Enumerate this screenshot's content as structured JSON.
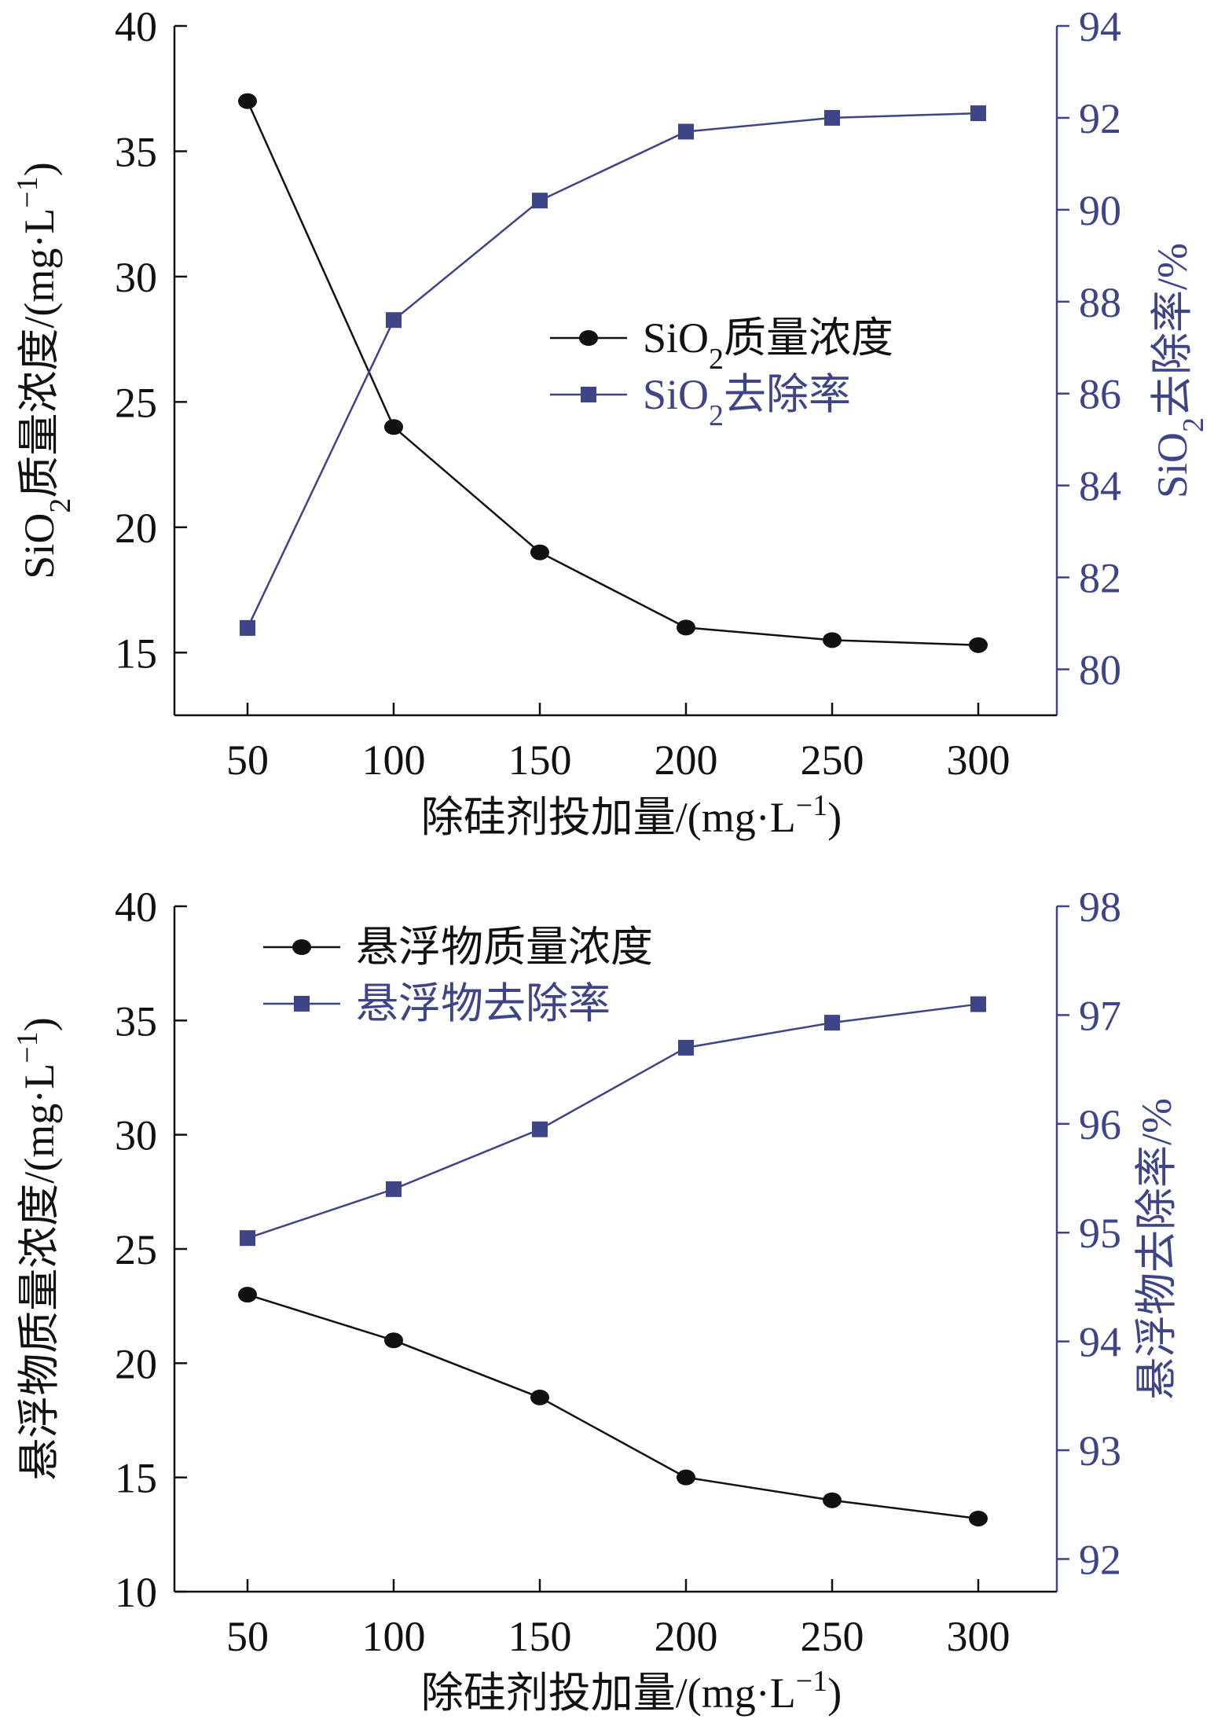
{
  "colors": {
    "left_series": "#111111",
    "right_series": "#3d4487",
    "axis_left": "#111111",
    "axis_right": "#3d4487"
  },
  "chart_data": [
    {
      "type": "line",
      "x": [
        50,
        100,
        150,
        200,
        250,
        300
      ],
      "xlabel": {
        "main": "除硅剂投加量/(mg·L",
        "sup": "−1",
        "tail": ")"
      },
      "ylabel_left": {
        "pre": "SiO",
        "sub": "2",
        "main": "质量浓度/(mg·L",
        "sup": "−1",
        "tail": ")"
      },
      "ylabel_right": {
        "pre": "SiO",
        "sub": "2",
        "main": "去除率/%"
      },
      "ylim_left": [
        12.5,
        40
      ],
      "yticks_left": [
        15,
        20,
        25,
        30,
        35,
        40
      ],
      "ylim_right": [
        79,
        94
      ],
      "yticks_right": [
        80,
        82,
        84,
        86,
        88,
        90,
        92,
        94
      ],
      "series": [
        {
          "name": {
            "pre": "SiO",
            "sub": "2",
            "main": "质量浓度"
          },
          "axis": "left",
          "marker": "circle",
          "values": [
            37,
            24,
            19,
            16,
            15.5,
            15.3
          ]
        },
        {
          "name": {
            "pre": "SiO",
            "sub": "2",
            "main": "去除率"
          },
          "axis": "right",
          "marker": "square",
          "values": [
            80.9,
            87.6,
            90.2,
            91.7,
            92.0,
            92.1
          ]
        }
      ],
      "legend_position": "center-right"
    },
    {
      "type": "line",
      "x": [
        50,
        100,
        150,
        200,
        250,
        300
      ],
      "xlabel": {
        "main": "除硅剂投加量/(mg·L",
        "sup": "−1",
        "tail": ")"
      },
      "ylabel_left": {
        "pre": "",
        "sub": "",
        "main": "悬浮物质量浓度/(mg·L",
        "sup": "−1",
        "tail": ")"
      },
      "ylabel_right": {
        "pre": "",
        "sub": "",
        "main": "悬浮物去除率/%"
      },
      "ylim_left": [
        10,
        40
      ],
      "yticks_left": [
        10,
        15,
        20,
        25,
        30,
        35,
        40
      ],
      "ylim_right": [
        91.7,
        98
      ],
      "yticks_right": [
        92,
        93,
        94,
        95,
        96,
        97,
        98
      ],
      "series": [
        {
          "name": {
            "pre": "",
            "sub": "",
            "main": "悬浮物质量浓度"
          },
          "axis": "left",
          "marker": "circle",
          "values": [
            23,
            21,
            18.5,
            15,
            14,
            13.2
          ]
        },
        {
          "name": {
            "pre": "",
            "sub": "",
            "main": "悬浮物去除率"
          },
          "axis": "right",
          "marker": "square",
          "values": [
            94.95,
            95.4,
            95.95,
            96.7,
            96.93,
            97.1
          ]
        }
      ],
      "legend_position": "top-left"
    }
  ]
}
